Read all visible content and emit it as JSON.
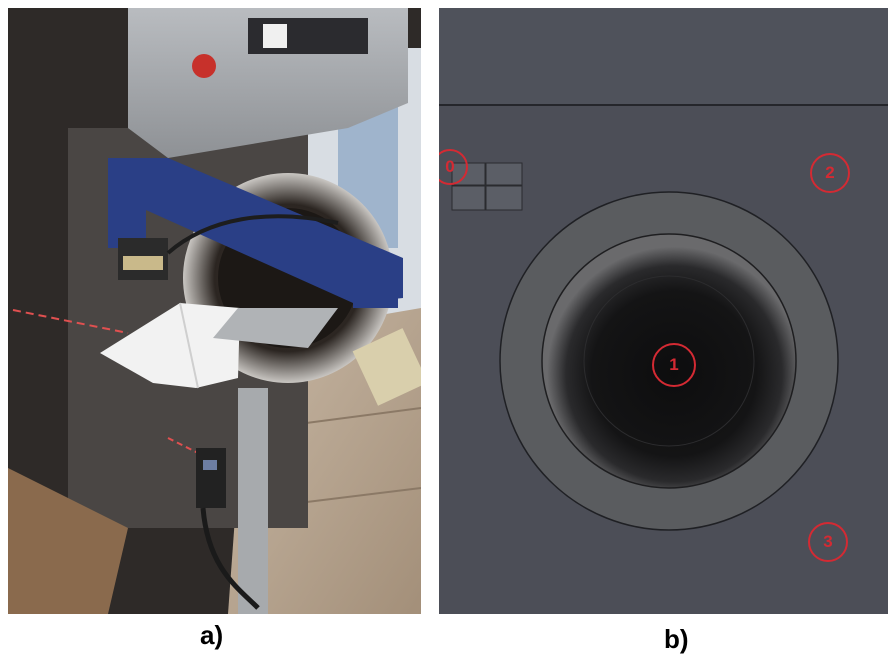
{
  "captions": {
    "a": "a)",
    "b": "b)"
  },
  "markers": [
    {
      "label": "0"
    },
    {
      "label": "1"
    },
    {
      "label": "2"
    },
    {
      "label": "3"
    }
  ],
  "colors": {
    "marker": "#d42a33",
    "cad_panel": "#4c4e57",
    "cad_drum": "#0e0e0f",
    "frame_blue": "#2a3f86"
  }
}
